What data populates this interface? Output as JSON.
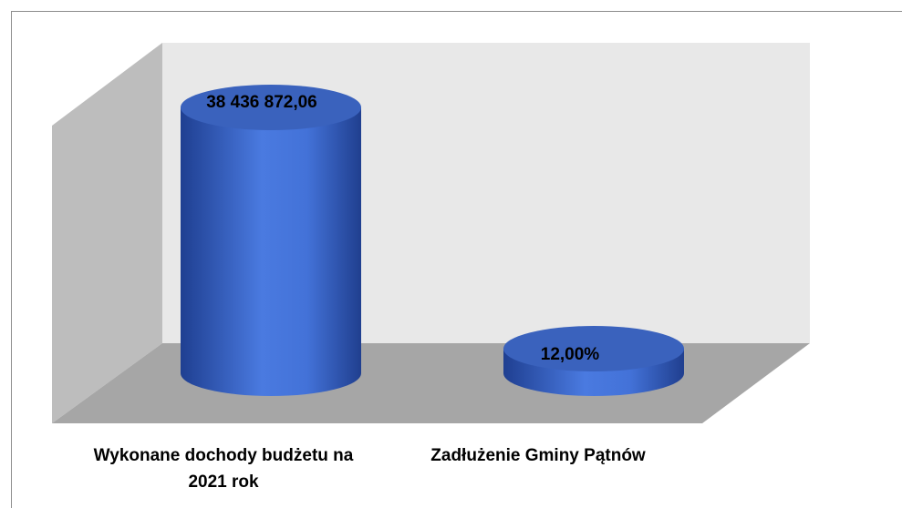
{
  "chart_data": {
    "type": "cylinder",
    "categories": [
      "Wykonane dochody budżetu na 2021 rok",
      "Zadłużenie Gminy Pątnów"
    ],
    "values": [
      38436872.06,
      12
    ],
    "value_labels": [
      "38 436 872,06",
      "12,00%"
    ],
    "color": "#3f6fd0"
  }
}
